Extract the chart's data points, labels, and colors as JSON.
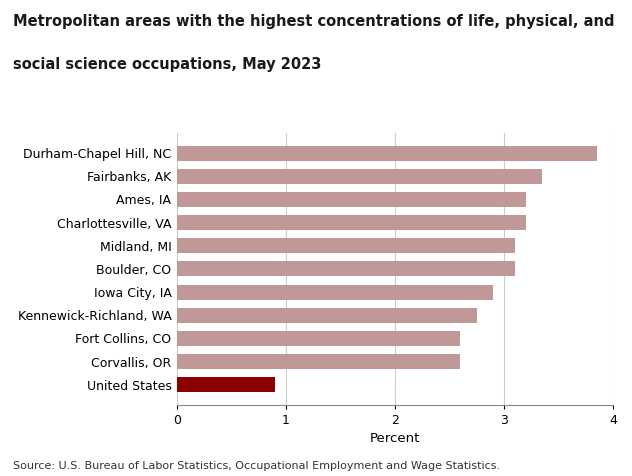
{
  "title_line1": "Metropolitan areas with the highest concentrations of life, physical, and",
  "title_line2": "social science occupations, May 2023",
  "categories": [
    "United States",
    "Corvallis, OR",
    "Fort Collins, CO",
    "Kennewick-Richland, WA",
    "Iowa City, IA",
    "Boulder, CO",
    "Midland, MI",
    "Charlottesville, VA",
    "Ames, IA",
    "Fairbanks, AK",
    "Durham-Chapel Hill, NC"
  ],
  "values": [
    0.9,
    2.6,
    2.6,
    2.75,
    2.9,
    3.1,
    3.1,
    3.2,
    3.2,
    3.35,
    3.85
  ],
  "bar_colors": [
    "#8B0000",
    "#C19898",
    "#C19898",
    "#C19898",
    "#C19898",
    "#C19898",
    "#C19898",
    "#C19898",
    "#C19898",
    "#C19898",
    "#C19898"
  ],
  "xlabel": "Percent",
  "xlim": [
    0,
    4
  ],
  "xticks": [
    0,
    1,
    2,
    3,
    4
  ],
  "source": "Source: U.S. Bureau of Labor Statistics, Occupational Employment and Wage Statistics.",
  "background_color": "#FFFFFF",
  "title_color": "#1a1a1a",
  "grid_color": "#CCCCCC",
  "title_fontsize": 10.5,
  "tick_fontsize": 9,
  "source_fontsize": 8,
  "xlabel_fontsize": 9.5,
  "bar_height": 0.65
}
